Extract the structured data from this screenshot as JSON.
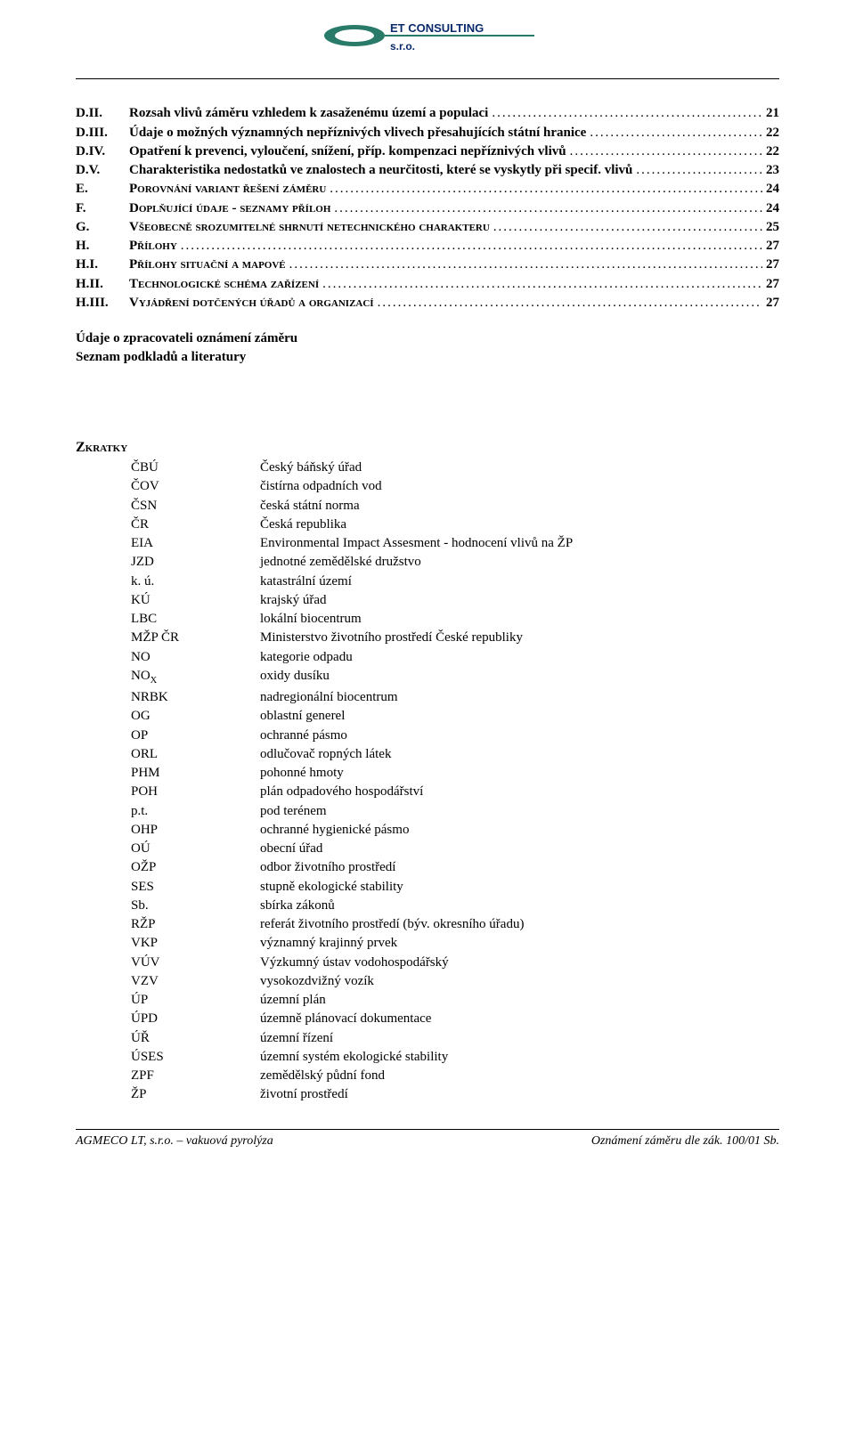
{
  "logo": {
    "text_top": "ET CONSULTING",
    "text_bottom": "s.r.o.",
    "shape_color": "#2a7a6a",
    "text_color": "#0a2a6a"
  },
  "toc": [
    {
      "num": "D.II.",
      "title": "Rozsah vlivů záměru vzhledem k zasaženému území a populaci",
      "page": "21",
      "sc": false
    },
    {
      "num": "D.III.",
      "title": "Údaje o možných významných nepříznivých vlivech přesahujících státní hranice",
      "page": "22",
      "sc": false
    },
    {
      "num": "D.IV.",
      "title": "Opatření k prevenci, vyloučení, snížení, příp. kompenzaci nepříznivých vlivů",
      "page": "22",
      "sc": false
    },
    {
      "num": "D.V.",
      "title": "Charakteristika nedostatků ve znalostech a neurčitosti, které se vyskytly při specif. vlivů",
      "page": "23",
      "sc": false
    },
    {
      "num": "E.",
      "title": "Porovnání variant řešení záměru",
      "page": "24",
      "sc": true
    },
    {
      "num": "F.",
      "title": "Doplňující údaje - seznamy příloh",
      "page": "24",
      "sc": true
    },
    {
      "num": "G.",
      "title": "Všeobecně srozumitelné shrnutí netechnického charakteru",
      "page": "25",
      "sc": true
    },
    {
      "num": "H.",
      "title": "Přílohy",
      "page": "27",
      "sc": true
    },
    {
      "num": "H.I.",
      "title": "Přílohy situační a mapové",
      "page": "27",
      "sc": true
    },
    {
      "num": "H.II.",
      "title": "Technologické schéma zařízení",
      "page": "27",
      "sc": true
    },
    {
      "num": "H.III.",
      "title": "Vyjádření dotčených úřadů a organizací",
      "page": "27",
      "sc": true
    }
  ],
  "post_toc": [
    "Údaje o zpracovateli oznámení záměru",
    "Seznam podkladů a literatury"
  ],
  "zkratky_heading": "Zkratky",
  "abbreviations": [
    {
      "k": "ČBÚ",
      "v": "Český báňský úřad"
    },
    {
      "k": "ČOV",
      "v": "čistírna odpadních vod"
    },
    {
      "k": "ČSN",
      "v": "česká státní norma"
    },
    {
      "k": "ČR",
      "v": "Česká republika"
    },
    {
      "k": "EIA",
      "v": "Environmental Impact Assesment - hodnocení vlivů na ŽP"
    },
    {
      "k": "JZD",
      "v": "jednotné zemědělské družstvo"
    },
    {
      "k": "k. ú.",
      "v": "katastrální území"
    },
    {
      "k": "KÚ",
      "v": "krajský úřad"
    },
    {
      "k": "LBC",
      "v": "lokální biocentrum"
    },
    {
      "k": "MŽP ČR",
      "v": "Ministerstvo životního prostředí České republiky"
    },
    {
      "k": "NO",
      "v": "kategorie odpadu"
    },
    {
      "k": "NO_X",
      "v": "oxidy dusíku",
      "sub": true
    },
    {
      "k": "NRBK",
      "v": "nadregionální biocentrum"
    },
    {
      "k": "OG",
      "v": "oblastní generel"
    },
    {
      "k": "OP",
      "v": "ochranné pásmo"
    },
    {
      "k": "ORL",
      "v": "odlučovač ropných látek"
    },
    {
      "k": "PHM",
      "v": "pohonné hmoty"
    },
    {
      "k": "POH",
      "v": "plán odpadového hospodářství"
    },
    {
      "k": "p.t.",
      "v": "pod terénem"
    },
    {
      "k": "OHP",
      "v": "ochranné hygienické pásmo"
    },
    {
      "k": "OÚ",
      "v": "obecní úřad"
    },
    {
      "k": "OŽP",
      "v": "odbor životního prostředí"
    },
    {
      "k": "SES",
      "v": "stupně ekologické stability"
    },
    {
      "k": "Sb.",
      "v": "sbírka zákonů"
    },
    {
      "k": "RŽP",
      "v": "referát životního prostředí (býv. okresního úřadu)"
    },
    {
      "k": "VKP",
      "v": "významný krajinný prvek"
    },
    {
      "k": "VÚV",
      "v": "Výzkumný ústav vodohospodářský"
    },
    {
      "k": "VZV",
      "v": "vysokozdvižný vozík"
    },
    {
      "k": "ÚP",
      "v": "územní plán"
    },
    {
      "k": "ÚPD",
      "v": "územně plánovací dokumentace"
    },
    {
      "k": "ÚŘ",
      "v": "územní řízení"
    },
    {
      "k": "ÚSES",
      "v": "územní systém ekologické stability"
    },
    {
      "k": "ZPF",
      "v": "zemědělský půdní fond"
    },
    {
      "k": "ŽP",
      "v": "životní prostředí"
    }
  ],
  "footer": {
    "left": "AGMECO LT, s.r.o. – vakuová pyrolýza",
    "right": "Oznámení záměru dle zák. 100/01 Sb."
  }
}
